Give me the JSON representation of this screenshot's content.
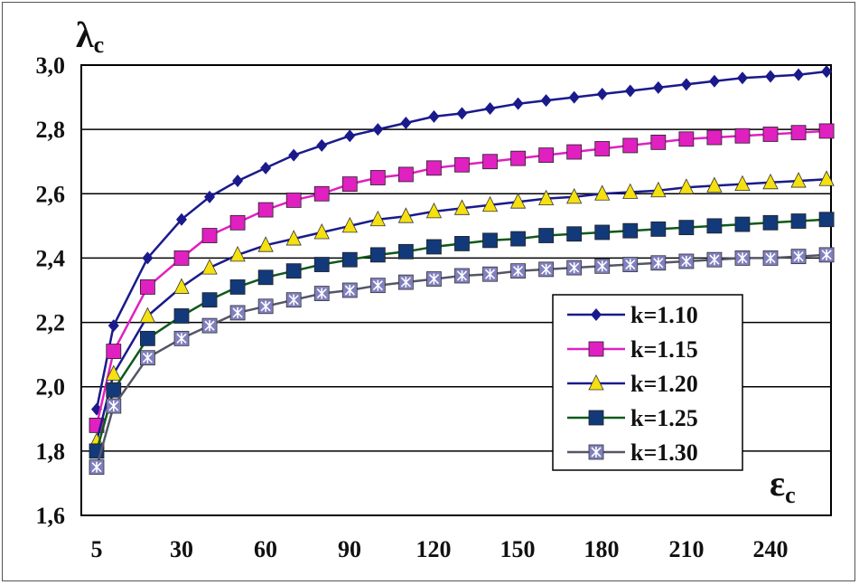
{
  "chart_data": {
    "type": "line",
    "title": "",
    "xlabel": {
      "main": "ε",
      "sub": "c"
    },
    "ylabel": {
      "main": "λ",
      "sub": "c"
    },
    "xlim": [
      0,
      265
    ],
    "ylim": [
      1.6,
      3.0
    ],
    "x_ticks": [
      5,
      30,
      60,
      90,
      120,
      150,
      180,
      210,
      240
    ],
    "x_tick_labels": [
      "5",
      "30",
      "60",
      "90",
      "120",
      "150",
      "180",
      "210",
      "240"
    ],
    "y_ticks": [
      1.6,
      1.8,
      2.0,
      2.2,
      2.4,
      2.6,
      2.8,
      3.0
    ],
    "y_tick_labels": [
      "1,6",
      "1,8",
      "2,0",
      "2,2",
      "2,4",
      "2,6",
      "2,8",
      "3,0"
    ],
    "grid": "horizontal",
    "legend_position": "right",
    "x": [
      5,
      10,
      20,
      30,
      40,
      50,
      60,
      70,
      80,
      90,
      100,
      110,
      120,
      130,
      140,
      150,
      160,
      170,
      180,
      190,
      200,
      210,
      220,
      230,
      240,
      250,
      260
    ],
    "series": [
      {
        "name": "k=1.10",
        "color": "#1a1a8c",
        "marker": "diamond",
        "values": [
          1.93,
          2.19,
          2.4,
          2.52,
          2.59,
          2.64,
          2.68,
          2.72,
          2.75,
          2.78,
          2.8,
          2.82,
          2.84,
          2.85,
          2.865,
          2.88,
          2.89,
          2.9,
          2.91,
          2.92,
          2.93,
          2.94,
          2.95,
          2.96,
          2.965,
          2.97,
          2.98
        ]
      },
      {
        "name": "k=1.15",
        "color": "#e020c0",
        "marker": "square",
        "values": [
          1.88,
          2.11,
          2.31,
          2.4,
          2.47,
          2.51,
          2.55,
          2.58,
          2.6,
          2.63,
          2.65,
          2.66,
          2.68,
          2.69,
          2.7,
          2.71,
          2.72,
          2.73,
          2.74,
          2.75,
          2.76,
          2.77,
          2.775,
          2.78,
          2.785,
          2.79,
          2.795
        ]
      },
      {
        "name": "k=1.20",
        "color": "#f5e010",
        "marker": "triangle",
        "values": [
          1.83,
          2.04,
          2.22,
          2.31,
          2.37,
          2.41,
          2.44,
          2.46,
          2.48,
          2.5,
          2.52,
          2.53,
          2.545,
          2.555,
          2.565,
          2.575,
          2.585,
          2.59,
          2.6,
          2.605,
          2.61,
          2.62,
          2.625,
          2.63,
          2.635,
          2.64,
          2.645
        ]
      },
      {
        "name": "k=1.25",
        "color": "#123a7a",
        "marker": "square",
        "values": [
          1.8,
          1.99,
          2.15,
          2.22,
          2.27,
          2.31,
          2.34,
          2.36,
          2.38,
          2.395,
          2.41,
          2.42,
          2.435,
          2.445,
          2.455,
          2.46,
          2.47,
          2.475,
          2.48,
          2.485,
          2.49,
          2.495,
          2.5,
          2.505,
          2.51,
          2.515,
          2.52
        ]
      },
      {
        "name": "k=1.30",
        "color": "#8080c0",
        "marker": "asterisk",
        "values": [
          1.75,
          1.94,
          2.09,
          2.15,
          2.19,
          2.23,
          2.25,
          2.27,
          2.29,
          2.3,
          2.315,
          2.325,
          2.335,
          2.345,
          2.35,
          2.36,
          2.365,
          2.37,
          2.375,
          2.38,
          2.385,
          2.39,
          2.395,
          2.4,
          2.4,
          2.405,
          2.41
        ]
      }
    ]
  }
}
